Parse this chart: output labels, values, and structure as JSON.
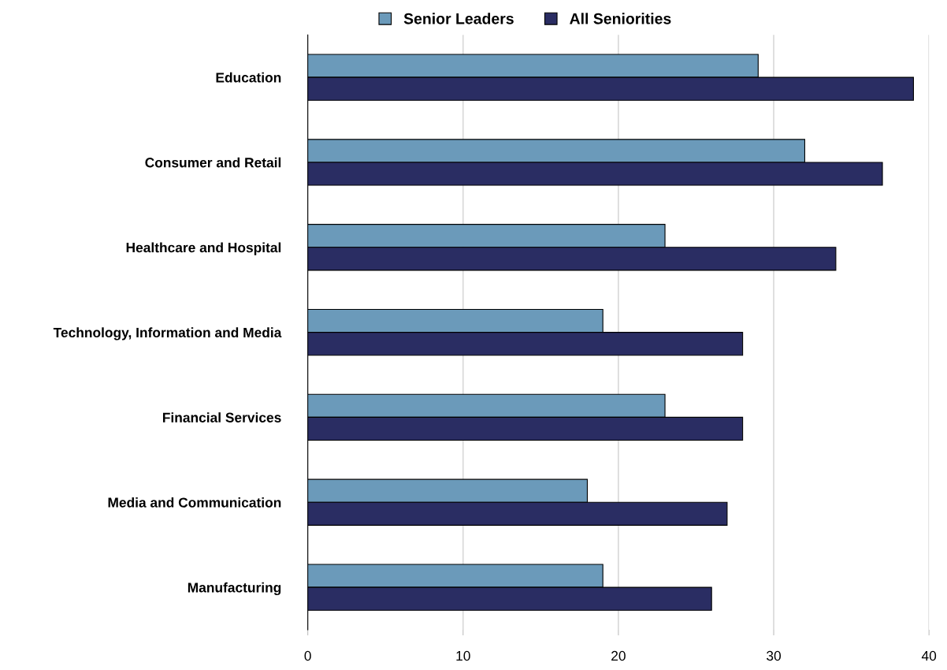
{
  "chart_data": {
    "type": "bar",
    "orientation": "horizontal",
    "categories": [
      "Education",
      "Consumer and Retail",
      "Healthcare and Hospital",
      "Technology, Information and Media",
      "Financial Services",
      "Media and Communication",
      "Manufacturing"
    ],
    "series": [
      {
        "name": "Senior Leaders",
        "color": "#6b9aba",
        "values": [
          29,
          32,
          23,
          19,
          23,
          18,
          19
        ]
      },
      {
        "name": "All Seniorities",
        "color": "#2a2d63",
        "values": [
          39,
          37,
          34,
          28,
          28,
          27,
          26
        ]
      }
    ],
    "xlim": [
      0,
      40
    ],
    "xticks": [
      0,
      10,
      20,
      30,
      40
    ],
    "grid": "x",
    "legend": "top"
  }
}
